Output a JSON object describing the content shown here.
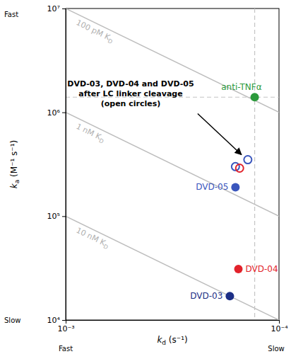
{
  "chart_data": {
    "type": "scatter",
    "log": true,
    "x_label": [
      "k",
      "d",
      " (s⁻¹)"
    ],
    "y_label": [
      "k",
      "a",
      " (M⁻¹ s⁻¹)"
    ],
    "x_end_labels": [
      "Fast",
      "Slow"
    ],
    "y_end_labels": [
      "Slow",
      "Fast"
    ],
    "xlim": [
      0.001,
      0.0001
    ],
    "ylim": [
      10000,
      10000000
    ],
    "xticks": [
      {
        "value": 0.001,
        "label": "10⁻³"
      },
      {
        "value": 0.0001,
        "label": "10⁻⁴"
      }
    ],
    "yticks": [
      {
        "value": 10000,
        "label": "10⁴"
      },
      {
        "value": 100000,
        "label": "10⁵"
      },
      {
        "value": 1000000,
        "label": "10⁶"
      },
      {
        "value": 10000000,
        "label": "10⁷"
      }
    ],
    "iso_kd": [
      {
        "value": 1e-10,
        "label": [
          "100 pM K",
          "D"
        ]
      },
      {
        "value": 1e-09,
        "label": [
          "1 nM K",
          "D"
        ]
      },
      {
        "value": 1e-08,
        "label": [
          "10 nM K",
          "D"
        ]
      }
    ],
    "annotation": [
      "DVD-03, DVD-04 and DVD-05",
      "after LC linker cleavage",
      "(open circles)"
    ],
    "series": [
      {
        "name": "anti-TNFα",
        "color": "#2c9a3c",
        "marker": "filled",
        "x": [
          0.00013
        ],
        "values": [
          1400000
        ]
      },
      {
        "name": "DVD-03",
        "color": "#1c2f86",
        "marker": "filled",
        "x": [
          0.00017
        ],
        "values": [
          17000
        ]
      },
      {
        "name": "DVD-04",
        "color": "#e2222b",
        "marker": "filled",
        "x": [
          0.000155
        ],
        "values": [
          31000
        ]
      },
      {
        "name": "DVD-05",
        "color": "#3a56bd",
        "marker": "filled",
        "x": [
          0.00016
        ],
        "values": [
          190000
        ]
      },
      {
        "marker": "open",
        "colors": [
          "#3a56bd",
          "#3a56bd",
          "#e2222b"
        ],
        "x": [
          0.00014,
          0.00016,
          0.000153
        ],
        "values": [
          350000,
          300000,
          290000
        ]
      }
    ]
  }
}
